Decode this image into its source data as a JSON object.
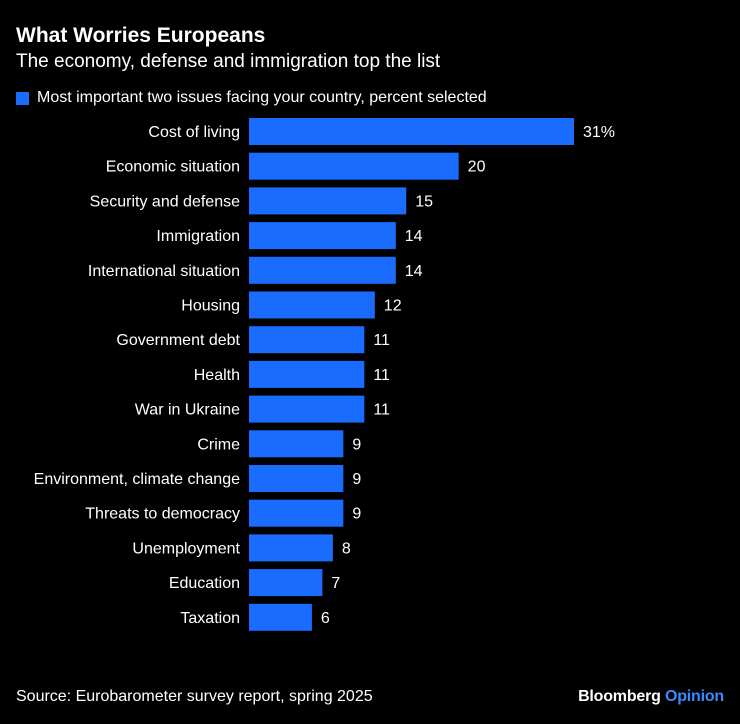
{
  "header": {
    "title": "What Worries Europeans",
    "subtitle": "The economy, defense and immigration top the list"
  },
  "legend": {
    "label": "Most important two issues facing your country, percent selected"
  },
  "footer": {
    "source": "Source: Eurobarometer survey report, spring 2025",
    "brand_main": "Bloomberg",
    "brand_accent": "Opinion"
  },
  "colors": {
    "bar": "#1a6cff",
    "background": "#000000",
    "text": "#ffffff",
    "accent": "#3b8bff"
  },
  "chart_data": {
    "type": "bar",
    "orientation": "horizontal",
    "categories": [
      "Cost of living",
      "Economic situation",
      "Security and defense",
      "Immigration",
      "International situation",
      "Housing",
      "Government debt",
      "Health",
      "War in Ukraine",
      "Crime",
      "Environment, climate change",
      "Threats to democracy",
      "Unemployment",
      "Education",
      "Taxation"
    ],
    "values": [
      31,
      20,
      15,
      14,
      14,
      12,
      11,
      11,
      11,
      9,
      9,
      9,
      8,
      7,
      6
    ],
    "value_labels": [
      "31%",
      "20",
      "15",
      "14",
      "14",
      "12",
      "11",
      "11",
      "11",
      "9",
      "9",
      "9",
      "8",
      "7",
      "6"
    ],
    "series": [
      {
        "name": "Most important two issues facing your country, percent selected",
        "values": [
          31,
          20,
          15,
          14,
          14,
          12,
          11,
          11,
          11,
          9,
          9,
          9,
          8,
          7,
          6
        ]
      }
    ],
    "xlim": [
      0,
      31
    ],
    "grid": false,
    "legend_position": "top-left"
  }
}
